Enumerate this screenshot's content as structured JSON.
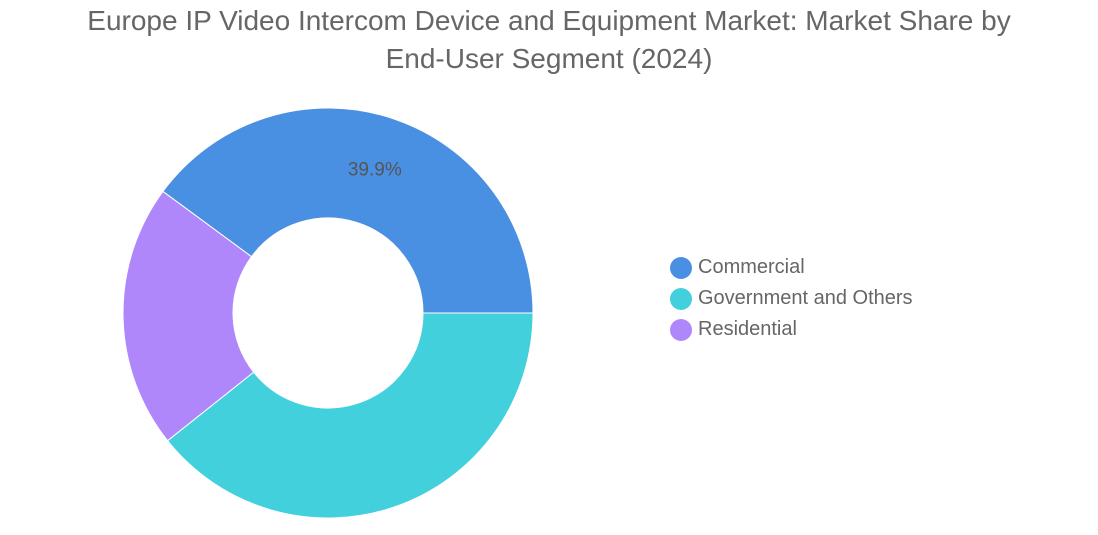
{
  "title": {
    "line1": "Europe IP Video Intercom Device and Equipment Market: Market Share by",
    "line2": "End-User Segment (2024)"
  },
  "chart_data": {
    "type": "pie",
    "variant": "donut",
    "title": "Europe IP Video Intercom Device and Equipment Market: Market Share by End-User Segment (2024)",
    "categories": [
      "Commercial",
      "Government and Others",
      "Residential"
    ],
    "values": [
      39.9,
      39.3,
      20.8
    ],
    "unit": "%",
    "data_labels": [
      "39.9%",
      "",
      ""
    ],
    "colors": [
      "#4a90e2",
      "#41d0dc",
      "#b087fb"
    ],
    "legend_position": "right"
  }
}
